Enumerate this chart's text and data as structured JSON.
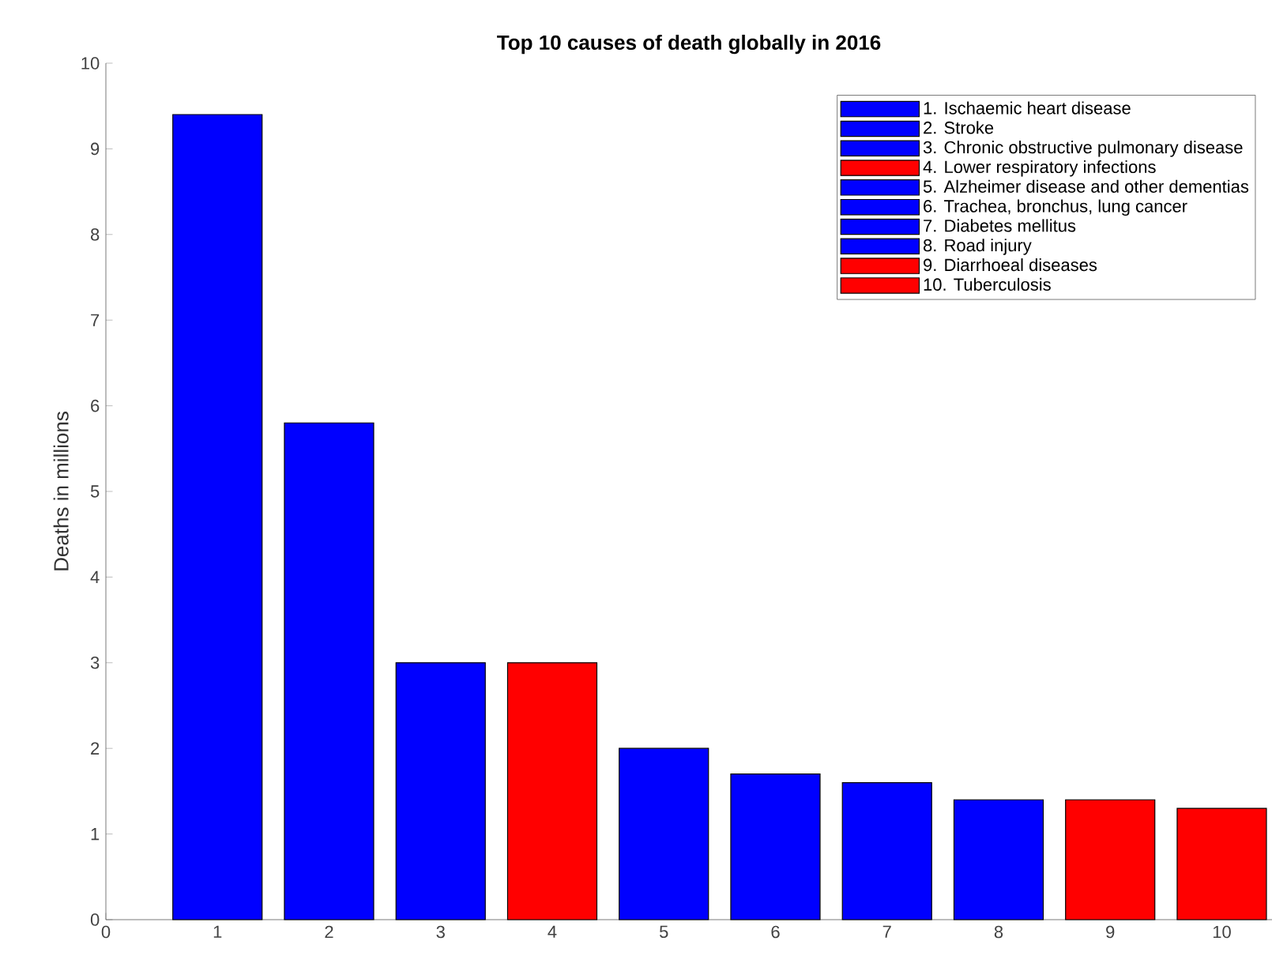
{
  "chart_data": {
    "type": "bar",
    "title": "Top 10 causes of death globally in 2016",
    "ylabel": "Deaths in millions",
    "xlim": [
      0,
      10.45
    ],
    "xticks": [
      0,
      1,
      2,
      3,
      4,
      5,
      6,
      7,
      8,
      9,
      10
    ],
    "ylim": [
      0,
      10
    ],
    "yticks": [
      0,
      1,
      2,
      3,
      4,
      5,
      6,
      7,
      8,
      9,
      10
    ],
    "legend": "top right",
    "grid": false,
    "series": [
      {
        "name": "1. Ischaemic heart disease",
        "color": "#0000ff",
        "x": [
          1
        ],
        "values": [
          9.4
        ]
      },
      {
        "name": "2. Stroke",
        "color": "#0000ff",
        "x": [
          2
        ],
        "values": [
          5.8
        ]
      },
      {
        "name": "3. Chronic obstructive pulmonary disease",
        "color": "#0000ff",
        "x": [
          3
        ],
        "values": [
          3.0
        ]
      },
      {
        "name": "4. Lower respiratory infections",
        "color": "#ff0000",
        "x": [
          4
        ],
        "values": [
          3.0
        ]
      },
      {
        "name": "5. Alzheimer disease and other dementias",
        "color": "#0000ff",
        "x": [
          5
        ],
        "values": [
          2.0
        ]
      },
      {
        "name": "6. Trachea, bronchus, lung cancer",
        "color": "#0000ff",
        "x": [
          6
        ],
        "values": [
          1.7
        ]
      },
      {
        "name": "7. Diabetes mellitus",
        "color": "#0000ff",
        "x": [
          7
        ],
        "values": [
          1.6
        ]
      },
      {
        "name": "8. Road injury",
        "color": "#0000ff",
        "x": [
          8
        ],
        "values": [
          1.4
        ]
      },
      {
        "name": "9. Diarrhoeal diseases",
        "color": "#ff0000",
        "x": [
          9
        ],
        "values": [
          1.4
        ]
      },
      {
        "name": "10. Tuberculosis",
        "color": "#ff0000",
        "x": [
          10
        ],
        "values": [
          1.3
        ]
      }
    ]
  }
}
